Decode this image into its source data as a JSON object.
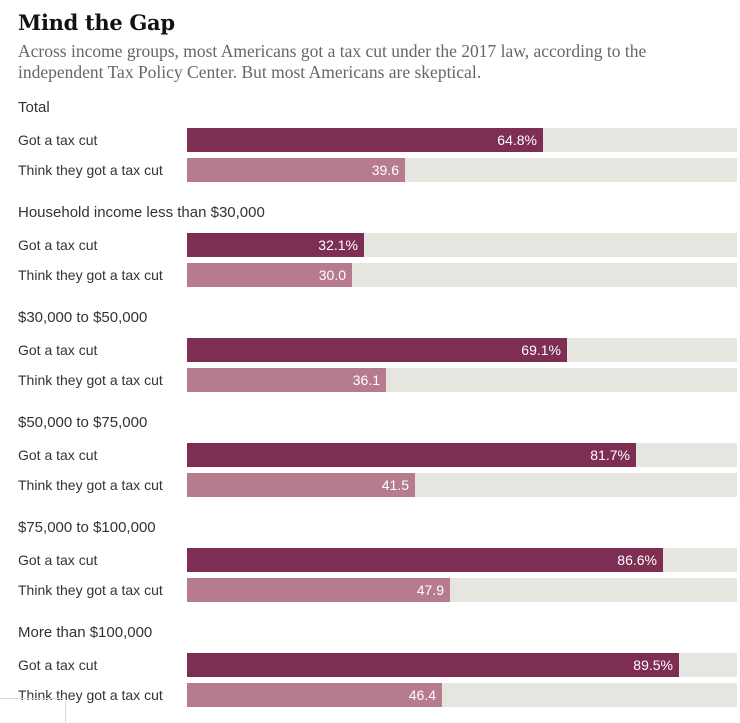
{
  "header": {
    "title": "Mind the Gap",
    "subtitle": "Across income groups, most Americans got a tax cut under the 2017 law, according to the independent Tax Policy Center. But most Americans are skeptical."
  },
  "colors": {
    "actual": "#7e2d53",
    "perceived": "#b77b8f",
    "track": "#e7e5e0"
  },
  "chart_data": {
    "type": "bar",
    "orientation": "horizontal",
    "title": "Mind the Gap",
    "subtitle": "Across income groups, most Americans got a tax cut under the 2017 law, according to the independent Tax Policy Center. But most Americans are skeptical.",
    "xlim": [
      0,
      100
    ],
    "unit": "%",
    "grid": false,
    "series_names": [
      "Got a tax cut",
      "Think they got a tax cut"
    ],
    "categories": [
      "Total",
      "Household income less than $30,000",
      "$30,000 to $50,000",
      "$50,000 to $75,000",
      "$75,000 to $100,000",
      "More than $100,000"
    ],
    "series": [
      {
        "name": "Got a tax cut",
        "values": [
          64.8,
          32.1,
          69.1,
          81.7,
          86.6,
          89.5
        ],
        "labels": [
          "64.8%",
          "32.1%",
          "69.1%",
          "81.7%",
          "86.6%",
          "89.5%"
        ]
      },
      {
        "name": "Think they got a tax cut",
        "values": [
          39.6,
          30.0,
          36.1,
          41.5,
          47.9,
          46.4
        ],
        "labels": [
          "39.6",
          "30.0",
          "36.1",
          "41.5",
          "47.9",
          "46.4"
        ]
      }
    ]
  }
}
